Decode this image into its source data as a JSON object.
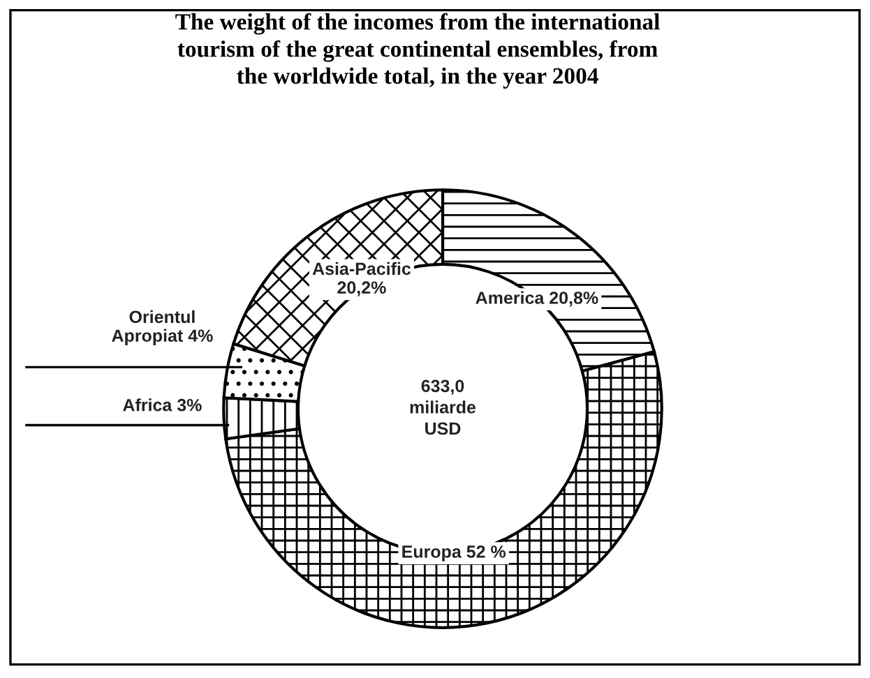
{
  "chart_data": {
    "type": "donut",
    "title": "The weight of the incomes from the international\ntourism of the great continental ensembles, from\nthe worldwide total, in the year 2004",
    "categories": [
      "America",
      "Europa",
      "Africa",
      "Orientul Apropiat",
      "Asia-Pacific"
    ],
    "values": [
      20.8,
      52,
      3,
      4,
      20.2
    ],
    "value_labels": [
      "20,8%",
      "52 %",
      "3%",
      "4%",
      "20,2%"
    ],
    "colors": [
      "#ffffff",
      "#ffffff",
      "#ffffff",
      "#ffffff",
      "#ffffff"
    ],
    "annotations": [
      "633,0\nmiliarde\nUSD"
    ],
    "legend": false
  }
}
